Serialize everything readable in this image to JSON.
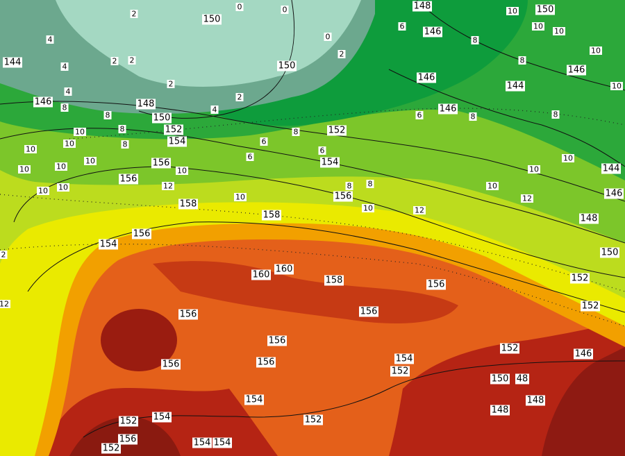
{
  "map": {
    "contour_labels": [
      "150",
      "148",
      "146",
      "150",
      "144",
      "146",
      "148",
      "150",
      "152",
      "154",
      "150",
      "146",
      "146",
      "144",
      "146",
      "152",
      "154",
      "156",
      "156",
      "156",
      "158",
      "158",
      "156",
      "154",
      "144",
      "146",
      "148",
      "150",
      "152",
      "152",
      "160",
      "160",
      "158",
      "156",
      "156",
      "156",
      "156",
      "156",
      "156",
      "154",
      "152",
      "152",
      "146",
      "150",
      "48",
      "148",
      "148",
      "154",
      "152",
      "154",
      "152",
      "156",
      "154",
      "154",
      "152"
    ],
    "temperature_labels": [
      "0",
      "0",
      "2",
      "4",
      "2",
      "2",
      "4",
      "2",
      "4",
      "8",
      "4",
      "2",
      "8",
      "8",
      "10",
      "10",
      "8",
      "10",
      "10",
      "10",
      "10",
      "10",
      "10",
      "12",
      "10",
      "10",
      "6",
      "6",
      "8",
      "6",
      "8",
      "10",
      "12",
      "10",
      "10",
      "8",
      "10",
      "10",
      "8",
      "12",
      "8",
      "6",
      "8",
      "2",
      "0",
      "12",
      "2",
      "10",
      "10",
      "10",
      "10",
      "6",
      "8"
    ]
  }
}
